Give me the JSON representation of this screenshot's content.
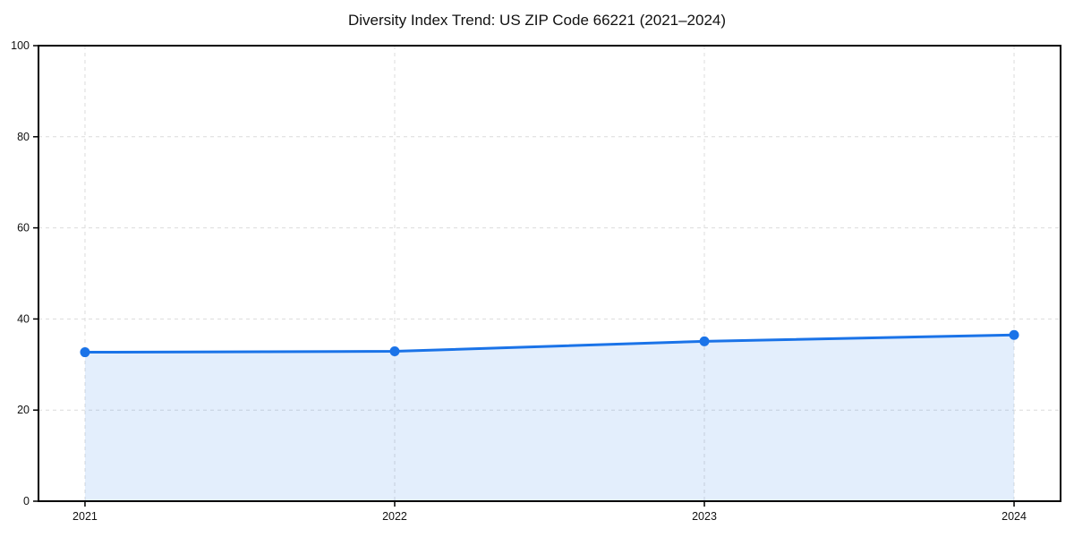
{
  "chart_data": {
    "type": "area",
    "title": "Diversity Index Trend: US ZIP Code 66221 (2021–2024)",
    "categories": [
      "2021",
      "2022",
      "2023",
      "2024"
    ],
    "values": [
      32.7,
      32.9,
      35.1,
      36.5
    ],
    "xlabel": "",
    "ylabel": "",
    "ylim": [
      0,
      100
    ],
    "yticks": [
      0,
      20,
      40,
      60,
      80,
      100
    ],
    "xticks": [
      "2021",
      "2022",
      "2023",
      "2024"
    ],
    "grid": true,
    "grid_style": "dashed",
    "legend": false,
    "marker": "circle",
    "line_color": "#1a73e8",
    "fill_color": "rgba(26,115,232,0.12)",
    "grid_color": "#dcdcdc",
    "spine_color": "#000000",
    "text_color": "#111111",
    "background_color": "#ffffff"
  }
}
